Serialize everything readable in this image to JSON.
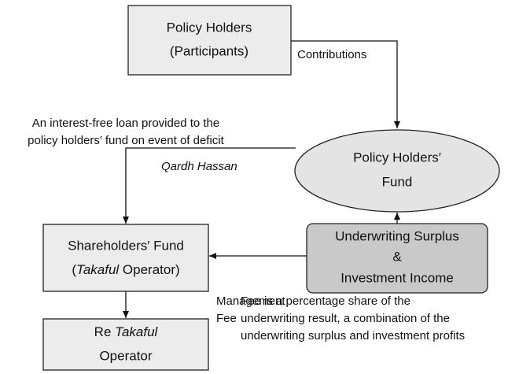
{
  "nodes": [
    {
      "id": "policy_holders",
      "lines": [
        "Policy Holders",
        "(Participants)"
      ]
    },
    {
      "id": "fund",
      "lines": [
        "Policy Holders′",
        "Fund"
      ]
    },
    {
      "id": "shareholders",
      "lines": [
        "Shareholders′ Fund"
      ],
      "line2_parts": [
        "(",
        "Takaful",
        " Operator)"
      ]
    },
    {
      "id": "underwriting",
      "lines": [
        "Underwriting Surplus",
        "&",
        "Investment Income"
      ]
    },
    {
      "id": "re_takaful",
      "line1_parts": [
        "Re ",
        "Takaful"
      ],
      "lines": [
        "Operator"
      ]
    }
  ],
  "edges": [
    {
      "label": [
        "Contributions"
      ]
    },
    {
      "label": [
        "Qardh Hassan"
      ]
    },
    {
      "label": [
        "Management",
        "Fee"
      ]
    }
  ],
  "notes": [
    {
      "lines": [
        "An interest-free loan provided to the",
        "policy holders′ fund on event of deficit"
      ]
    },
    {
      "lines": [
        "Fee is a percentage share of the",
        "underwriting result, a combination of the",
        "underwriting surplus and investment profits"
      ]
    }
  ]
}
